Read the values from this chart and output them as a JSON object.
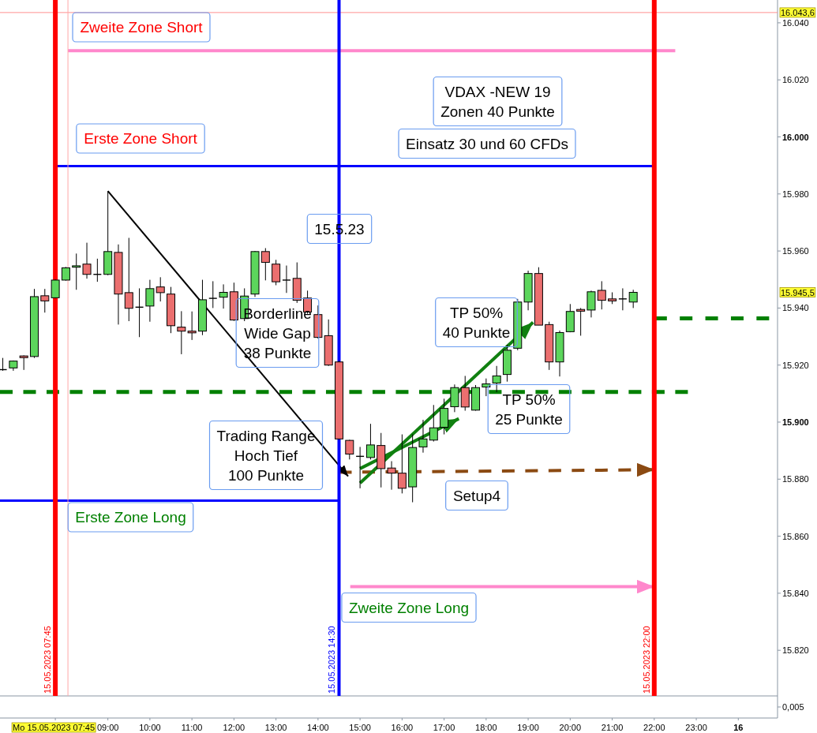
{
  "chart_data": {
    "type": "candlestick",
    "x": [
      "2023-05-15T06:30",
      "2023-05-15T06:45",
      "2023-05-15T07:00",
      "2023-05-15T07:15",
      "2023-05-15T07:30",
      "2023-05-15T07:45",
      "2023-05-15T08:00",
      "2023-05-15T08:15",
      "2023-05-15T08:30",
      "2023-05-15T08:45",
      "2023-05-15T09:00",
      "2023-05-15T09:15",
      "2023-05-15T09:30",
      "2023-05-15T09:45",
      "2023-05-15T10:00",
      "2023-05-15T10:15",
      "2023-05-15T10:30",
      "2023-05-15T10:45",
      "2023-05-15T11:00",
      "2023-05-15T11:15",
      "2023-05-15T11:30",
      "2023-05-15T11:45",
      "2023-05-15T12:00",
      "2023-05-15T12:15",
      "2023-05-15T12:30",
      "2023-05-15T12:45",
      "2023-05-15T13:00",
      "2023-05-15T13:15",
      "2023-05-15T13:30",
      "2023-05-15T13:45",
      "2023-05-15T14:00",
      "2023-05-15T14:15",
      "2023-05-15T14:30",
      "2023-05-15T14:45",
      "2023-05-15T15:00",
      "2023-05-15T15:15",
      "2023-05-15T15:30",
      "2023-05-15T15:45",
      "2023-05-15T16:00",
      "2023-05-15T16:15",
      "2023-05-15T16:30",
      "2023-05-15T16:45",
      "2023-05-15T17:00",
      "2023-05-15T17:15",
      "2023-05-15T17:30",
      "2023-05-15T17:45",
      "2023-05-15T18:00",
      "2023-05-15T18:15",
      "2023-05-15T18:30",
      "2023-05-15T18:45",
      "2023-05-15T19:00",
      "2023-05-15T19:15",
      "2023-05-15T19:30",
      "2023-05-15T19:45",
      "2023-05-15T20:00",
      "2023-05-15T20:15",
      "2023-05-15T20:30",
      "2023-05-15T20:45",
      "2023-05-15T21:00",
      "2023-05-15T21:15",
      "2023-05-15T21:30"
    ],
    "ohlc": [
      [
        15918.4,
        15922.5,
        15918.0,
        15918.4
      ],
      [
        15919.0,
        15921.6,
        15918.0,
        15921.4
      ],
      [
        15923.2,
        15923.4,
        15918.3,
        15922.6
      ],
      [
        15923.0,
        15946.7,
        15922.5,
        15944.0
      ],
      [
        15944.3,
        15946.7,
        15938.4,
        15942.5
      ],
      [
        15943.6,
        15950.0,
        15943.4,
        15949.8
      ],
      [
        15949.8,
        15954.4,
        15949.6,
        15954.1
      ],
      [
        15954.3,
        15959.1,
        15946.4,
        15954.8
      ],
      [
        15955.4,
        15962.9,
        15950.3,
        15951.8
      ],
      [
        15951.8,
        15957.3,
        15949.2,
        15951.8
      ],
      [
        15951.8,
        15981.0,
        15951.5,
        15959.8
      ],
      [
        15959.5,
        15962.3,
        15934.2,
        15944.9
      ],
      [
        15945.4,
        15964.6,
        15935.4,
        15939.9
      ],
      [
        15940.3,
        15946.9,
        15929.8,
        15940.3
      ],
      [
        15940.7,
        15949.9,
        15935.2,
        15946.8
      ],
      [
        15947.4,
        15950.8,
        15942.3,
        15945.4
      ],
      [
        15944.9,
        15947.4,
        15931.2,
        15933.8
      ],
      [
        15933.3,
        15938.9,
        15923.8,
        15931.9
      ],
      [
        15931.9,
        15938.8,
        15928.8,
        15931.3
      ],
      [
        15931.9,
        15949.9,
        15930.5,
        15942.9
      ],
      [
        15943.4,
        15949.4,
        15940.0,
        15943.4
      ],
      [
        15943.8,
        15948.3,
        15939.8,
        15945.5
      ],
      [
        15945.7,
        15948.9,
        15935.5,
        15935.8
      ],
      [
        15936.3,
        15946.9,
        15935.4,
        15944.2
      ],
      [
        15944.9,
        15960.0,
        15943.9,
        15959.8
      ],
      [
        15959.8,
        15961.0,
        15949.7,
        15956.0
      ],
      [
        15955.4,
        15956.9,
        15948.0,
        15949.2
      ],
      [
        15949.8,
        15954.9,
        15945.3,
        15949.8
      ],
      [
        15950.4,
        15956.0,
        15941.8,
        15942.7
      ],
      [
        15943.5,
        15946.1,
        15938.0,
        15938.6
      ],
      [
        15937.7,
        15940.9,
        15929.3,
        15929.7
      ],
      [
        15930.3,
        15936.0,
        15919.7,
        15920.0
      ],
      [
        15921.1,
        15921.5,
        15894.0,
        15894.1
      ],
      [
        15893.6,
        15893.8,
        15886.9,
        15888.8
      ],
      [
        15888.0,
        15891.3,
        15876.8,
        15888.0
      ],
      [
        15887.6,
        15899.4,
        15886.9,
        15892.0
      ],
      [
        15891.8,
        15896.2,
        15877.1,
        15883.7
      ],
      [
        15883.9,
        15886.3,
        15876.3,
        15882.1
      ],
      [
        15882.1,
        15895.7,
        15875.0,
        15876.8
      ],
      [
        15877.3,
        15895.7,
        15871.9,
        15891.1
      ],
      [
        15891.3,
        15900.8,
        15889.3,
        15894.1
      ],
      [
        15893.7,
        15906.0,
        15893.2,
        15898.0
      ],
      [
        15898.2,
        15908.2,
        15895.7,
        15904.8
      ],
      [
        15905.4,
        15913.2,
        15903.5,
        15912.1
      ],
      [
        15912.1,
        15916.2,
        15904.0,
        15905.3
      ],
      [
        15904.2,
        15913.0,
        15904.0,
        15912.1
      ],
      [
        15912.3,
        15915.3,
        15909.1,
        15913.4
      ],
      [
        15913.7,
        15919.7,
        15910.5,
        15916.2
      ],
      [
        15916.7,
        15927.1,
        15914.2,
        15925.2
      ],
      [
        15925.9,
        15943.2,
        15925.2,
        15942.1
      ],
      [
        15942.1,
        15953.1,
        15939.2,
        15952.1
      ],
      [
        15952.1,
        15954.3,
        15934.0,
        15934.0
      ],
      [
        15934.2,
        15935.2,
        15918.3,
        15921.1
      ],
      [
        15921.1,
        15932.1,
        15916.0,
        15931.4
      ],
      [
        15931.7,
        15941.4,
        15931.5,
        15938.8
      ],
      [
        15939.5,
        15940.0,
        15930.3,
        15938.9
      ],
      [
        15939.3,
        15946.1,
        15936.7,
        15945.7
      ],
      [
        15946.2,
        15949.4,
        15939.5,
        15942.7
      ],
      [
        15943.2,
        15945.5,
        15941.4,
        15942.5
      ],
      [
        15943.2,
        15946.9,
        15939.2,
        15943.2
      ],
      [
        15942.1,
        15946.4,
        15940.0,
        15945.5
      ]
    ],
    "colors": [
      "#000000",
      "#5cd65c",
      "#eb6f6f",
      "#5cd65c",
      "#eb6f6f",
      "#5cd65c",
      "#5cd65c",
      "#5cd65c",
      "#eb6f6f",
      "#000000",
      "#5cd65c",
      "#eb6f6f",
      "#eb6f6f",
      "#000000",
      "#5cd65c",
      "#eb6f6f",
      "#eb6f6f",
      "#eb6f6f",
      "#eb6f6f",
      "#5cd65c",
      "#000000",
      "#5cd65c",
      "#eb6f6f",
      "#5cd65c",
      "#5cd65c",
      "#eb6f6f",
      "#eb6f6f",
      "#000000",
      "#eb6f6f",
      "#eb6f6f",
      "#eb6f6f",
      "#eb6f6f",
      "#eb6f6f",
      "#eb6f6f",
      "#000000",
      "#5cd65c",
      "#eb6f6f",
      "#eb6f6f",
      "#eb6f6f",
      "#5cd65c",
      "#5cd65c",
      "#5cd65c",
      "#5cd65c",
      "#5cd65c",
      "#eb6f6f",
      "#5cd65c",
      "#5cd65c",
      "#5cd65c",
      "#5cd65c",
      "#5cd65c",
      "#5cd65c",
      "#eb6f6f",
      "#eb6f6f",
      "#5cd65c",
      "#5cd65c",
      "#eb6f6f",
      "#5cd65c",
      "#eb6f6f",
      "#eb6f6f",
      "#000000",
      "#5cd65c"
    ],
    "series": [
      {
        "type": "line",
        "x": [
          "2023-05-15T08:03",
          "2023-05-15T22:30"
        ],
        "values": [
          16030.2,
          16030.2
        ],
        "color": "#ff88cc"
      },
      {
        "type": "line",
        "x": [
          "2023-05-15T07:45",
          "2023-05-15T22:00"
        ],
        "values": [
          15989.8,
          15989.8
        ],
        "color": "#0000ff"
      },
      {
        "type": "line",
        "x": [
          "2023-05-15T06:26",
          "2023-05-15T14:30"
        ],
        "values": [
          15872.5,
          15872.5
        ],
        "color": "#0000ff"
      },
      {
        "type": "line",
        "x": [
          "2023-05-15T14:46",
          "2023-05-15T22:00"
        ],
        "values": [
          15842.3,
          15842.3
        ],
        "color": "#ff88cc"
      },
      {
        "type": "line",
        "x": [
          "2023-05-15T06:26",
          "2023-05-15T22:48"
        ],
        "values": [
          15910.6,
          15910.6
        ],
        "color": "#008000",
        "line_style": "dashed"
      },
      {
        "type": "line",
        "x": [
          "2023-05-15T22:00",
          "2023-05-16T00:44"
        ],
        "values": [
          15936.4,
          15936.4
        ],
        "color": "#008000",
        "line_style": "dashed"
      },
      {
        "type": "line",
        "x": [
          "2023-05-15T14:30",
          "2023-05-15T22:00"
        ],
        "values": [
          15882.4,
          15883.3
        ],
        "color": "#8b4a12",
        "line_style": "dashed"
      },
      {
        "type": "line",
        "x": [
          "2023-05-15T09:00",
          "2023-05-15T14:43"
        ],
        "values": [
          15981,
          15881
        ],
        "color": "#000000"
      },
      {
        "type": "line",
        "x": [
          "2023-05-15T15:00",
          "2023-05-15T19:07"
        ],
        "values": [
          15878.6,
          15935
        ],
        "color": "#108010"
      },
      {
        "type": "line",
        "x": [
          "2023-05-15T15:00",
          "2023-05-15T17:21"
        ],
        "values": [
          15883.7,
          15901.2
        ],
        "color": "#108010"
      }
    ],
    "xlim": [
      "2023-05-15T06:26",
      "2023-05-16T00:56"
    ],
    "xticks": [
      {
        "value": "2023-05-15T07:45",
        "label": "Mo 15.05.2023 07:45"
      },
      {
        "value": "2023-05-15T09:00",
        "label": "09:00"
      },
      {
        "value": "2023-05-15T10:00",
        "label": "10:00"
      },
      {
        "value": "2023-05-15T11:00",
        "label": "11:00"
      },
      {
        "value": "2023-05-15T12:00",
        "label": "12:00"
      },
      {
        "value": "2023-05-15T13:00",
        "label": "13:00"
      },
      {
        "value": "2023-05-15T14:00",
        "label": "14:00"
      },
      {
        "value": "2023-05-15T15:00",
        "label": "15:00"
      },
      {
        "value": "2023-05-15T16:00",
        "label": "16:00"
      },
      {
        "value": "2023-05-15T17:00",
        "label": "17:00"
      },
      {
        "value": "2023-05-15T18:00",
        "label": "18:00"
      },
      {
        "value": "2023-05-15T19:00",
        "label": "19:00"
      },
      {
        "value": "2023-05-15T20:00",
        "label": "20:00"
      },
      {
        "value": "2023-05-15T21:00",
        "label": "21:00"
      },
      {
        "value": "2023-05-15T22:00",
        "label": "22:00"
      },
      {
        "value": "2023-05-15T23:00",
        "label": "23:00"
      },
      {
        "value": "2023-05-16T00:00",
        "label": "16"
      }
    ],
    "ylim": [
      15804,
      16048
    ],
    "yticks": [
      {
        "value": 15820,
        "label": "15.820"
      },
      {
        "value": 15840,
        "label": "15.840"
      },
      {
        "value": 15860,
        "label": "15.860"
      },
      {
        "value": 15880,
        "label": "15.880"
      },
      {
        "value": 15900,
        "label": "15.900"
      },
      {
        "value": 15920,
        "label": "15.920"
      },
      {
        "value": 15940,
        "label": "15.940"
      },
      {
        "value": 15960,
        "label": "15.960"
      },
      {
        "value": 15980,
        "label": "15.980"
      },
      {
        "value": 16000,
        "label": "16.000"
      },
      {
        "value": 16020,
        "label": "16.020"
      },
      {
        "value": 16040,
        "label": "16.040"
      }
    ],
    "ref_lines": [
      {
        "axis": "y",
        "value": 16043.6,
        "label": "16.043,6",
        "color": "#ff9090"
      },
      {
        "axis": "x",
        "value": "2023-05-15T07:45",
        "label": "15.05.2023 07:45",
        "color": "#ff0000"
      },
      {
        "axis": "x",
        "value": "2023-05-15T14:30",
        "label": "15.05.2023 14:30",
        "color": "#0000ff"
      },
      {
        "axis": "x",
        "value": "2023-05-15T22:00",
        "label": "15.05.2023 22:00",
        "color": "#ff0000"
      },
      {
        "axis": "x",
        "value": "2023-05-15T08:03",
        "color": "#ffa8a8"
      }
    ],
    "annotations": [
      "Zweite Zone Short",
      "Erste Zone Short",
      "VDAX -NEW 19\nZonen 40 Punkte",
      "Einsatz 30 und 60 CFDs",
      "15.5.23",
      "Borderline\nWide Gap\n38 Punkte",
      "Trading Range\nHoch Tief\n100 Punkte",
      "TP 50%\n40 Punkte",
      "TP 50%\n25 Punkte",
      "Setup4",
      "Erste Zone Long",
      "Zweite Zone Long",
      "15.945,5",
      "0,005"
    ]
  }
}
